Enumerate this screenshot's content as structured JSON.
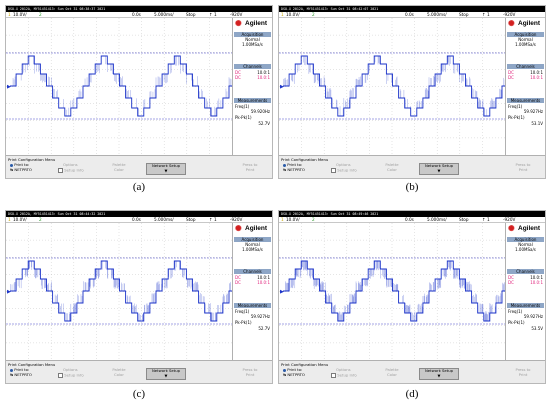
{
  "panels": [
    {
      "label": "(a)",
      "topbar": "DSO-X 2012A, MY51451413: Sun Oct 31 08:38:37 2021",
      "ch1_scale": "10.0V/",
      "ch2_num": "2",
      "time_pos": "0.0s",
      "time_scale": "5.000ms/",
      "run_state": "Stop",
      "trigger": "-920V",
      "freq": "59.920Hz",
      "pkpk": "52.7V"
    },
    {
      "label": "(b)",
      "topbar": "DSO-X 2012A, MY51451413: Sun Oct 31 08:42:07 2021",
      "ch1_scale": "10.0V/",
      "ch2_num": "2",
      "time_pos": "0.0s",
      "time_scale": "5.000ms/",
      "run_state": "Stop",
      "trigger": "-920V",
      "freq": "59.927Hz",
      "pkpk": "53.1V"
    },
    {
      "label": "(c)",
      "topbar": "DSO-X 2012A, MY51451413: Sun Oct 31 08:44:32 2021",
      "ch1_scale": "10.0V/",
      "ch2_num": "2",
      "time_pos": "0.0s",
      "time_scale": "5.000ms/",
      "run_state": "Stop",
      "trigger": "-920V",
      "freq": "59.927Hz",
      "pkpk": "52.7V"
    },
    {
      "label": "(d)",
      "topbar": "DSO-X 2012A, MY51451413: Sun Oct 31 08:49:46 2021",
      "ch1_scale": "10.0V/",
      "ch2_num": "2",
      "time_pos": "0.0s",
      "time_scale": "5.000ms/",
      "run_state": "Stop",
      "trigger": "-920V",
      "freq": "59.927Hz",
      "pkpk": "53.5V"
    }
  ],
  "sidebar": {
    "brand": "Agilent",
    "acquisition_title": "Acquisition",
    "acq_mode": "Normal",
    "acq_rate": "1.00MSa/s",
    "channels_title": "Channels",
    "dc1_label": "DC",
    "dc1_value": "10.0:1",
    "dc2_label": "DC",
    "dc2_value": "10.0:1",
    "measurements_title": "Measurements",
    "freq_label": "Freq(1)",
    "pkpk_label": "Pk-Pk(1)"
  },
  "menu": {
    "title": "Print Configuration Menu",
    "print_to_label": "Print to:",
    "print_to_value": "NETPRTO",
    "options_label": "Options",
    "options_value": "Setup Info",
    "palette_label": "Palette",
    "palette_value": "Color",
    "network_label": "Network Setup",
    "press_to": "Press to",
    "press_print": "Print"
  },
  "colors": {
    "waveform": "#1a32c8",
    "grid": "#a8a8a8",
    "trigger_line": "#4a4acc",
    "accent_pink": "#e0207a",
    "section_header": "#8ea6c6"
  }
}
